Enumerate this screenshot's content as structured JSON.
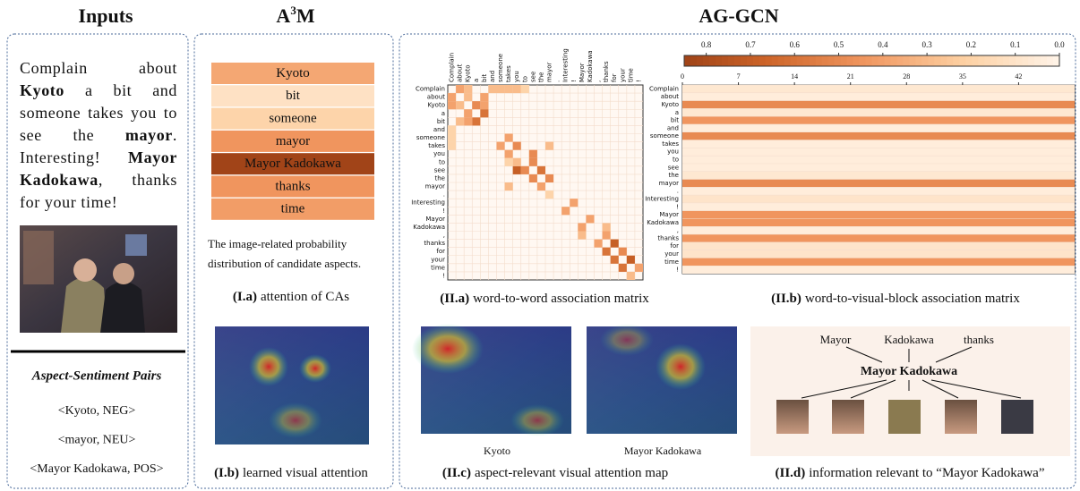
{
  "headers": {
    "inputs": "Inputs",
    "a3m": {
      "base": "A",
      "sup": "3",
      "tail": "M"
    },
    "aggcn": "AG-GCN"
  },
  "inputs": {
    "sentence": [
      {
        "text": "Complain about ",
        "bold": false
      },
      {
        "text": "Kyoto",
        "bold": true
      },
      {
        "text": " a bit and someone takes you to see the ",
        "bold": false
      },
      {
        "text": "mayor",
        "bold": true
      },
      {
        "text": ". Interesting! ",
        "bold": false
      },
      {
        "text": "Mayor Kadokawa",
        "bold": true
      },
      {
        "text": ", thanks for your time!",
        "bold": false
      }
    ],
    "pairs_title": "Aspect-Sentiment Pairs",
    "pairs": [
      "<Kyoto, NEG>",
      "<mayor, NEU>",
      "<Mayor Kadokawa, POS>"
    ]
  },
  "a3m": {
    "aspects": [
      {
        "name": "Kyoto",
        "weight": 0.38
      },
      {
        "name": "bit",
        "weight": 0.12
      },
      {
        "name": "someone",
        "weight": 0.2
      },
      {
        "name": "mayor",
        "weight": 0.45
      },
      {
        "name": "Mayor Kadokawa",
        "weight": 0.85
      },
      {
        "name": "thanks",
        "weight": 0.45
      },
      {
        "name": "time",
        "weight": 0.42
      }
    ],
    "note": [
      "The image-related probability",
      "distribution of candidate aspects."
    ],
    "caption_a": {
      "label": "(I.a)",
      "text": "attention of CAs"
    },
    "caption_b": {
      "label": "(I.b)",
      "text": "learned visual attention"
    }
  },
  "word_matrix": {
    "words": [
      "Complain",
      "about",
      "Kyoto",
      "a",
      "bit",
      "and",
      "someone",
      "takes",
      "you",
      "to",
      "see",
      "the",
      "mayor",
      ".",
      "Interesting",
      "!",
      "Mayor",
      "Kadokawa",
      ",",
      "thanks",
      "for",
      "your",
      "time",
      "!"
    ],
    "cells": [
      [
        0,
        1,
        0.4
      ],
      [
        0,
        2,
        0.3
      ],
      [
        1,
        0,
        0.4
      ],
      [
        1,
        2,
        0.3
      ],
      [
        1,
        4,
        0.4
      ],
      [
        2,
        0,
        0.4
      ],
      [
        2,
        1,
        0.3
      ],
      [
        2,
        3,
        0.5
      ],
      [
        2,
        4,
        0.4
      ],
      [
        3,
        2,
        0.4
      ],
      [
        3,
        4,
        0.6
      ],
      [
        4,
        1,
        0.3
      ],
      [
        4,
        3,
        0.6
      ],
      [
        4,
        2,
        0.4
      ],
      [
        0,
        5,
        0.3
      ],
      [
        0,
        6,
        0.3
      ],
      [
        0,
        7,
        0.3
      ],
      [
        0,
        8,
        0.3
      ],
      [
        0,
        9,
        0.2
      ],
      [
        5,
        0,
        0.2
      ],
      [
        6,
        0,
        0.2
      ],
      [
        7,
        0,
        0.2
      ],
      [
        7,
        6,
        0.4
      ],
      [
        7,
        8,
        0.5
      ],
      [
        6,
        7,
        0.4
      ],
      [
        8,
        7,
        0.4
      ],
      [
        8,
        10,
        0.5
      ],
      [
        9,
        10,
        0.5
      ],
      [
        10,
        8,
        0.7
      ],
      [
        10,
        9,
        0.5
      ],
      [
        10,
        11,
        0.6
      ],
      [
        11,
        10,
        0.5
      ],
      [
        11,
        12,
        0.5
      ],
      [
        12,
        11,
        0.4
      ],
      [
        12,
        7,
        0.3
      ],
      [
        7,
        12,
        0.3
      ],
      [
        9,
        8,
        0.3
      ],
      [
        14,
        15,
        0.4
      ],
      [
        15,
        14,
        0.4
      ],
      [
        16,
        17,
        0.4
      ],
      [
        17,
        16,
        0.4
      ],
      [
        17,
        19,
        0.3
      ],
      [
        18,
        16,
        0.3
      ],
      [
        18,
        19,
        0.4
      ],
      [
        19,
        18,
        0.4
      ],
      [
        19,
        20,
        0.7
      ],
      [
        20,
        19,
        0.6
      ],
      [
        20,
        21,
        0.5
      ],
      [
        21,
        20,
        0.6
      ],
      [
        21,
        22,
        0.7
      ],
      [
        22,
        21,
        0.6
      ],
      [
        22,
        23,
        0.4
      ],
      [
        13,
        12,
        0.2
      ],
      [
        9,
        7,
        0.2
      ],
      [
        23,
        22,
        0.3
      ]
    ],
    "caption": {
      "label": "(II.a)",
      "text": "word-to-word association matrix"
    }
  },
  "visual_matrix": {
    "colorbar_lim": [
      0.85,
      0
    ],
    "colorbar_ticks": [
      0.8,
      0.7,
      0.6,
      0.5,
      0.4,
      0.3,
      0.2,
      0.1,
      {
        "value": 0,
        "label": "0.0"
      }
    ],
    "block_lim": [
      0,
      49
    ],
    "block_ticks": [
      0,
      7,
      14,
      21,
      28,
      35,
      42
    ],
    "row_values": [
      0.08,
      0.05,
      0.5,
      0.08,
      0.45,
      0.05,
      0.5,
      0.05,
      0.05,
      0.05,
      0.05,
      0.08,
      0.5,
      0.05,
      0.1,
      0.05,
      0.45,
      0.45,
      0.05,
      0.45,
      0.1,
      0.1,
      0.45,
      0.05
    ],
    "caption": {
      "label": "(II.b)",
      "text": "word-to-visual-block association matrix"
    }
  },
  "aspect_maps": {
    "labels": [
      "Kyoto",
      "Mayor Kadokawa"
    ],
    "caption": {
      "label": "(II.c)",
      "text": "aspect-relevant visual attention map"
    }
  },
  "relevance": {
    "neighbors": [
      "Mayor",
      "Kadokawa",
      "thanks"
    ],
    "center": "Mayor Kadokawa",
    "caption": {
      "label": "(II.d)",
      "text": "information relevant to “Mayor Kadokawa”"
    }
  }
}
